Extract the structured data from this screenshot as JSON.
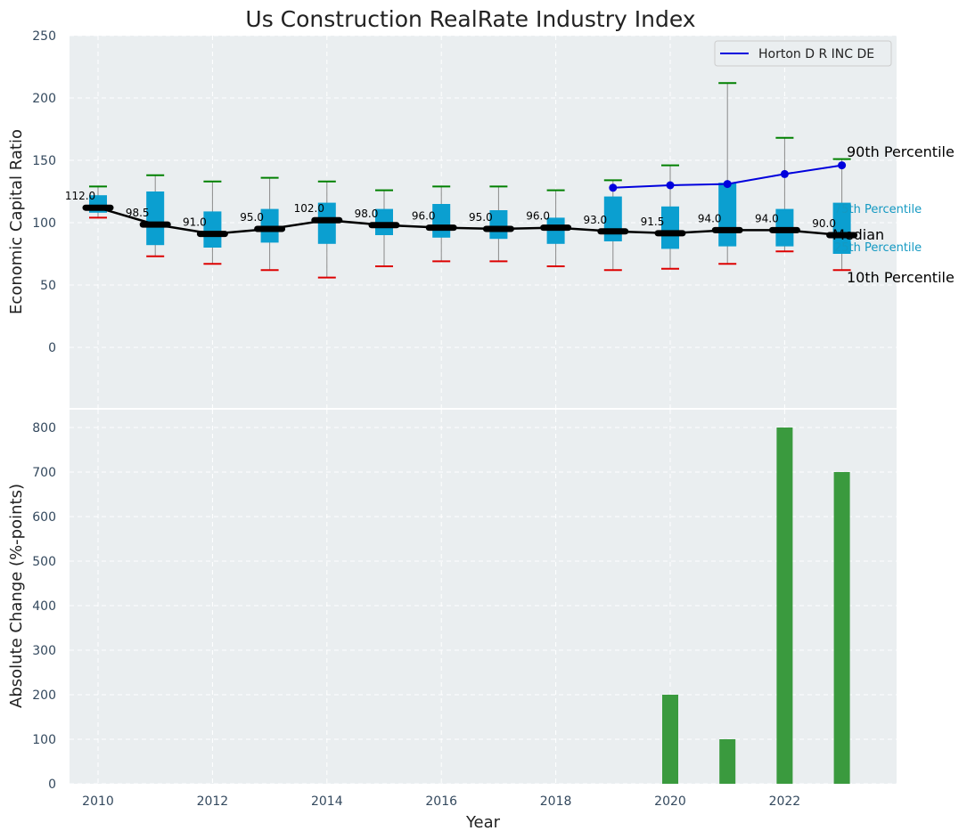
{
  "chart_data": [
    {
      "type": "box",
      "title": "Us Construction RealRate Industry Index",
      "ylabel": "Economic Capital Ratio",
      "ylim": [
        -50,
        250
      ],
      "yticks": [
        0,
        50,
        100,
        150,
        200,
        250
      ],
      "grid": true,
      "legend": {
        "position": "top-right",
        "entries": [
          "Horton D R INC DE"
        ]
      },
      "years": [
        2010,
        2011,
        2012,
        2013,
        2014,
        2015,
        2016,
        2017,
        2018,
        2019,
        2020,
        2021,
        2022,
        2023
      ],
      "p10": [
        104,
        73,
        67,
        62,
        56,
        65,
        69,
        69,
        65,
        62,
        63,
        67,
        77,
        62
      ],
      "q1": [
        108,
        82,
        80,
        84,
        83,
        90,
        88,
        87,
        83,
        85,
        79,
        81,
        81,
        75
      ],
      "median": [
        112,
        98.5,
        91,
        95,
        102,
        98,
        96,
        95,
        96,
        93,
        91.5,
        94,
        94,
        90
      ],
      "q3": [
        122,
        125,
        109,
        111,
        116,
        111,
        115,
        110,
        104,
        121,
        113,
        132,
        111,
        116
      ],
      "p90": [
        129,
        138,
        133,
        136,
        133,
        126,
        129,
        129,
        126,
        134,
        146,
        212,
        168,
        151
      ],
      "median_labels": [
        "112.0",
        "98.5",
        "91.0",
        "95.0",
        "102.0",
        "98.0",
        "96.0",
        "95.0",
        "96.0",
        "93.0",
        "91.5",
        "94.0",
        "94.0",
        "90.0"
      ],
      "series": [
        {
          "name": "Horton D R INC DE",
          "x": [
            2019,
            2020,
            2021,
            2022,
            2023
          ],
          "values": [
            128,
            130,
            131,
            139,
            146
          ]
        }
      ],
      "annotations": [
        "90th Percentile",
        "75th Percentile",
        "Median",
        "25th Percentile",
        "10th Percentile"
      ]
    },
    {
      "type": "bar",
      "ylabel": "Absolute Change (%-points)",
      "xlabel": "Year",
      "ylim": [
        0,
        850
      ],
      "yticks": [
        0,
        100,
        200,
        300,
        400,
        500,
        600,
        700,
        800
      ],
      "xticks": [
        2010,
        2012,
        2014,
        2016,
        2018,
        2020,
        2022
      ],
      "grid": true,
      "categories": [
        2020,
        2021,
        2022,
        2023
      ],
      "values": [
        200,
        100,
        800,
        700
      ]
    }
  ],
  "colors": {
    "box_fill": "#0b9fd0",
    "median_line": "#000000",
    "company_line": "#0000dd",
    "p90_cap": "#008000",
    "p10_cap": "#dd0000",
    "bar": "#3a9a3e",
    "axes_bg": "#eaeef0"
  }
}
